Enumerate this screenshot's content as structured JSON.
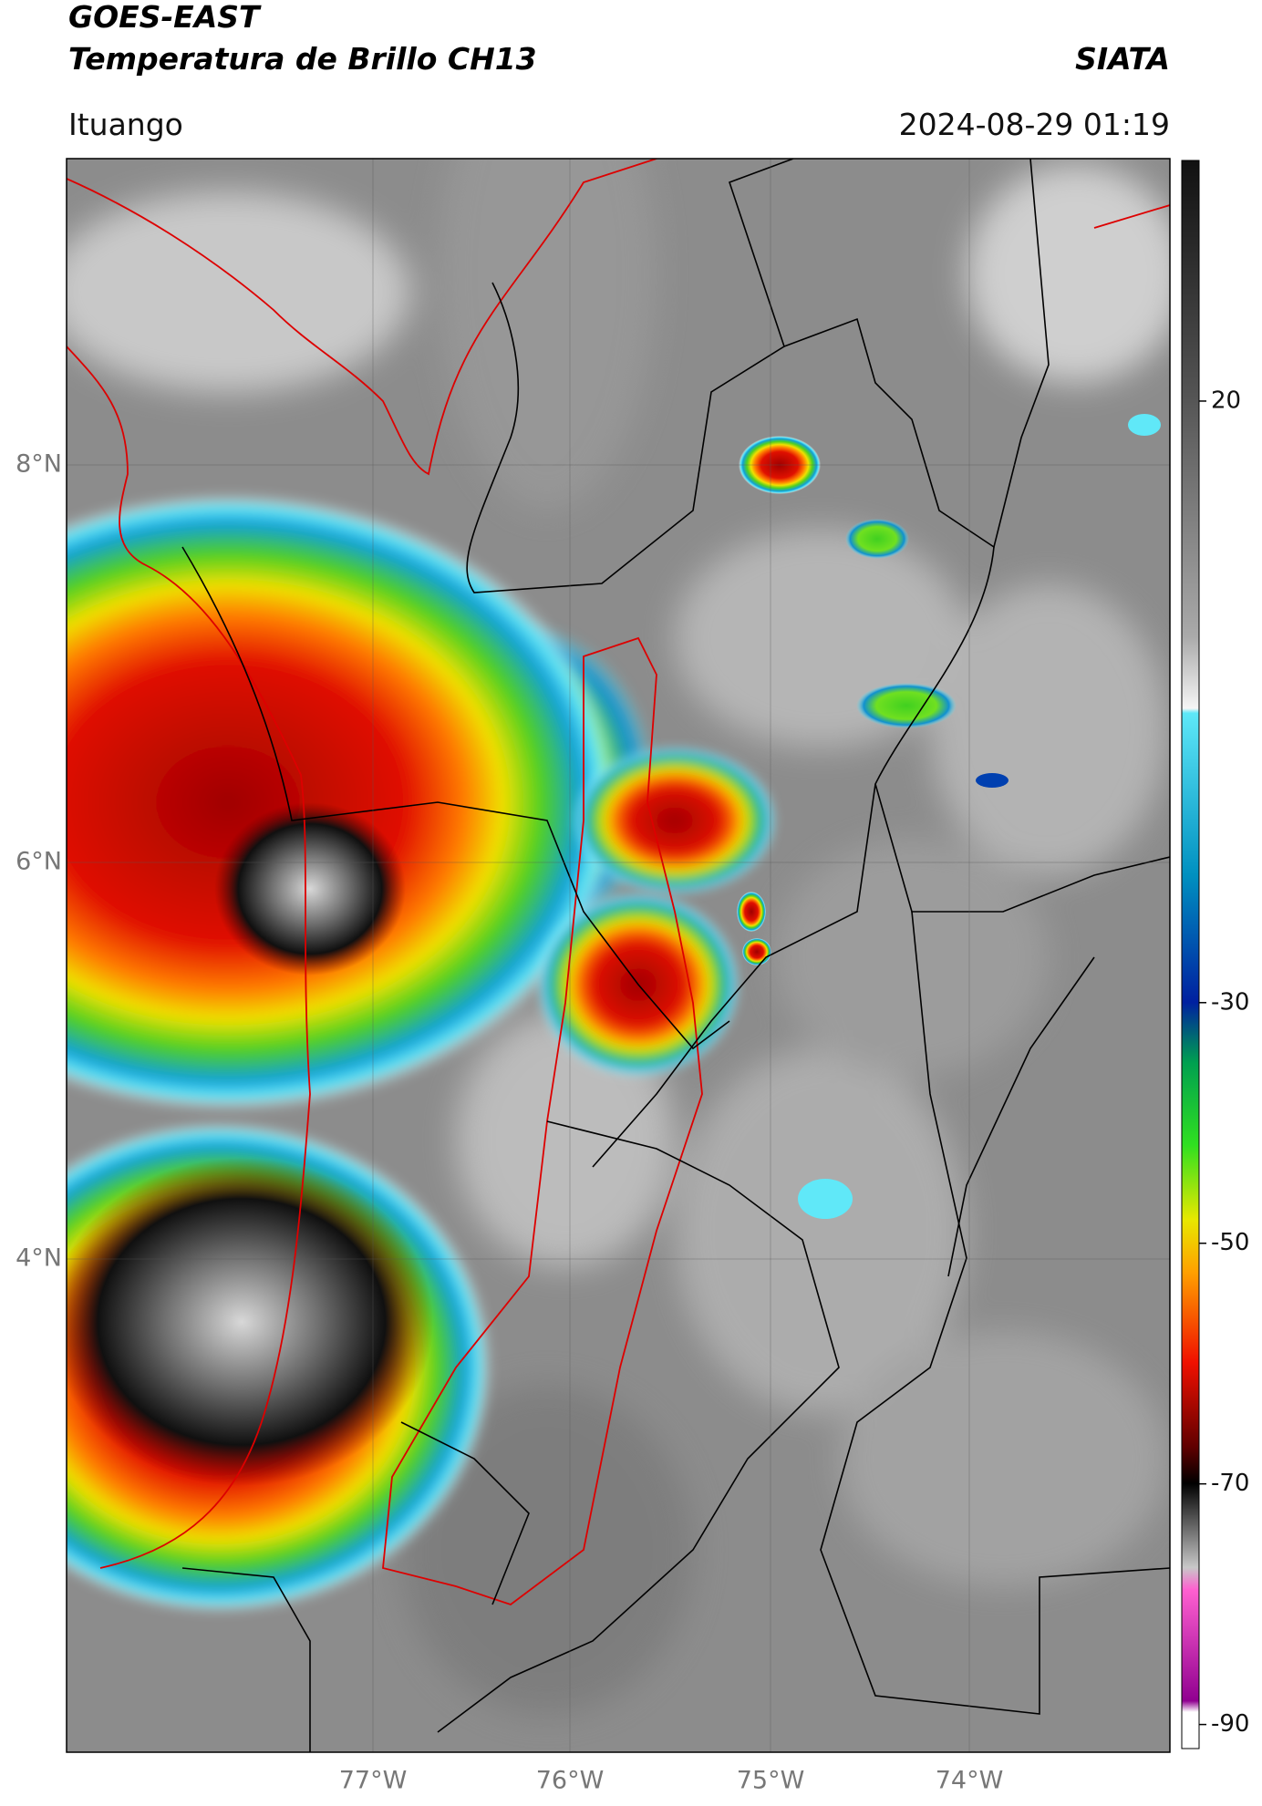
{
  "header": {
    "title": "GOES-EAST",
    "subtitle": "Temperatura de Brillo CH13",
    "brand": "SIATA",
    "region": "Ituango",
    "datetime": "2024-08-29 01:19"
  },
  "map": {
    "lat_labels": [
      "8°N",
      "6°N",
      "4°N"
    ],
    "lon_labels": [
      "77°W",
      "76°W",
      "75°W",
      "74°W"
    ]
  },
  "colorbar": {
    "lim": [
      -92,
      40
    ],
    "ticks": [
      20,
      -30,
      -50,
      -70,
      -90
    ]
  }
}
